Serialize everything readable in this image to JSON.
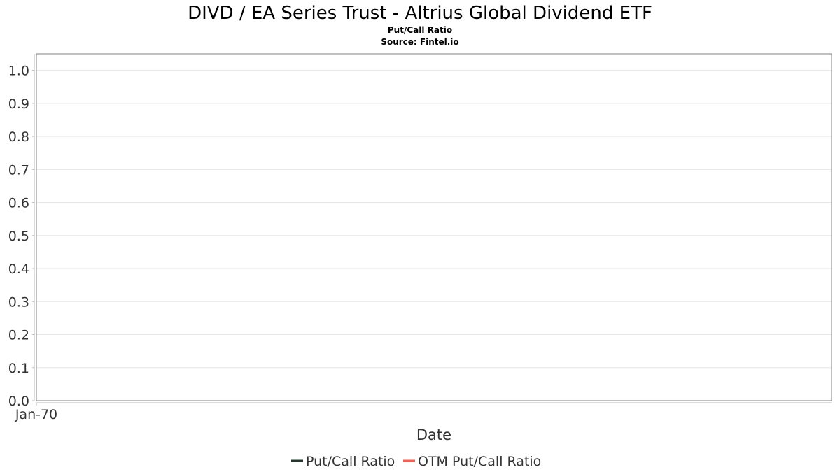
{
  "chart_data": {
    "type": "line",
    "title": "DIVD / EA Series Trust - Altrius Global Dividend ETF",
    "subtitle": "Put/Call Ratio",
    "source": "Source: Fintel.io",
    "xlabel": "Date",
    "ylabel": "",
    "ylim": [
      0,
      1.05
    ],
    "yticks": [
      "0.0",
      "0.1",
      "0.2",
      "0.3",
      "0.4",
      "0.5",
      "0.6",
      "0.7",
      "0.8",
      "0.9",
      "1.0"
    ],
    "xticks": [
      "Jan-70"
    ],
    "grid": true,
    "legend_position": "bottom",
    "series": [
      {
        "name": "Put/Call Ratio",
        "color": "#1f3a2b",
        "values": []
      },
      {
        "name": "OTM Put/Call Ratio",
        "color": "#ff5a4a",
        "values": []
      }
    ]
  }
}
